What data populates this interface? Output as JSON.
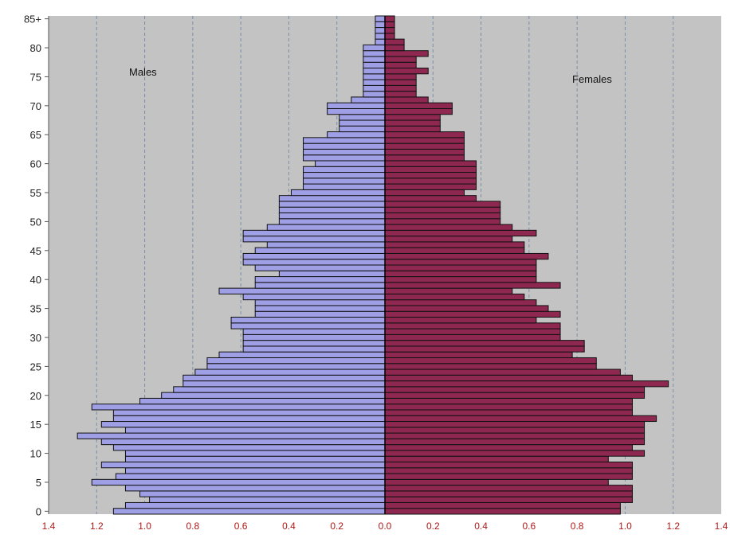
{
  "chart_data": {
    "type": "bar",
    "orientation": "horizontal",
    "subtype": "population-pyramid",
    "title": "",
    "xlabel": "",
    "ylabel": "",
    "annotations": [
      {
        "text": "Males"
      },
      {
        "text": "Females"
      }
    ],
    "y_categories": [
      "0",
      "1",
      "2",
      "3",
      "4",
      "5",
      "6",
      "7",
      "8",
      "9",
      "10",
      "11",
      "12",
      "13",
      "14",
      "15",
      "16",
      "17",
      "18",
      "19",
      "20",
      "21",
      "22",
      "23",
      "24",
      "25",
      "26",
      "27",
      "28",
      "29",
      "30",
      "31",
      "32",
      "33",
      "34",
      "35",
      "36",
      "37",
      "38",
      "39",
      "40",
      "41",
      "42",
      "43",
      "44",
      "45",
      "46",
      "47",
      "48",
      "49",
      "50",
      "51",
      "52",
      "53",
      "54",
      "55",
      "56",
      "57",
      "58",
      "59",
      "60",
      "61",
      "62",
      "63",
      "64",
      "65",
      "66",
      "67",
      "68",
      "69",
      "70",
      "71",
      "72",
      "73",
      "74",
      "75",
      "76",
      "77",
      "78",
      "79",
      "80",
      "81",
      "82",
      "83",
      "84",
      "85+"
    ],
    "y_tick_labels": [
      "0",
      "5",
      "10",
      "15",
      "20",
      "25",
      "30",
      "35",
      "40",
      "45",
      "50",
      "55",
      "60",
      "65",
      "70",
      "75",
      "80",
      "85+"
    ],
    "x_tick_labels": [
      "1.4",
      "1.2",
      "1.0",
      "0.8",
      "0.6",
      "0.4",
      "0.2",
      "0.0",
      "0.2",
      "0.4",
      "0.6",
      "0.8",
      "1.0",
      "1.2",
      "1.4"
    ],
    "xlim": [
      -1.4,
      1.4
    ],
    "grid": "vertical",
    "series": [
      {
        "name": "Males",
        "color": "#9f9fe6",
        "values": [
          1.13,
          1.08,
          0.98,
          1.02,
          1.08,
          1.22,
          1.12,
          1.08,
          1.18,
          1.08,
          1.08,
          1.13,
          1.18,
          1.28,
          1.08,
          1.18,
          1.13,
          1.13,
          1.22,
          1.02,
          0.93,
          0.88,
          0.84,
          0.84,
          0.79,
          0.74,
          0.74,
          0.69,
          0.59,
          0.59,
          0.59,
          0.59,
          0.64,
          0.64,
          0.54,
          0.54,
          0.54,
          0.59,
          0.69,
          0.54,
          0.54,
          0.44,
          0.54,
          0.59,
          0.59,
          0.54,
          0.49,
          0.59,
          0.59,
          0.49,
          0.44,
          0.44,
          0.44,
          0.44,
          0.44,
          0.39,
          0.34,
          0.34,
          0.34,
          0.34,
          0.29,
          0.34,
          0.34,
          0.34,
          0.34,
          0.24,
          0.19,
          0.19,
          0.19,
          0.24,
          0.24,
          0.14,
          0.09,
          0.09,
          0.09,
          0.09,
          0.09,
          0.09,
          0.09,
          0.09,
          0.09,
          0.04,
          0.04,
          0.04,
          0.04,
          0.04
        ]
      },
      {
        "name": "Females",
        "color": "#8e2850",
        "values": [
          0.98,
          0.98,
          1.03,
          1.03,
          1.03,
          0.93,
          1.03,
          1.03,
          1.03,
          0.93,
          1.08,
          1.03,
          1.08,
          1.08,
          1.08,
          1.08,
          1.13,
          1.03,
          1.03,
          1.03,
          1.08,
          1.08,
          1.18,
          1.03,
          0.98,
          0.88,
          0.88,
          0.78,
          0.83,
          0.83,
          0.73,
          0.73,
          0.73,
          0.63,
          0.73,
          0.68,
          0.63,
          0.58,
          0.53,
          0.73,
          0.63,
          0.63,
          0.63,
          0.63,
          0.68,
          0.58,
          0.58,
          0.53,
          0.63,
          0.53,
          0.48,
          0.48,
          0.48,
          0.48,
          0.38,
          0.33,
          0.38,
          0.38,
          0.38,
          0.38,
          0.38,
          0.33,
          0.33,
          0.33,
          0.33,
          0.33,
          0.23,
          0.23,
          0.23,
          0.28,
          0.28,
          0.18,
          0.13,
          0.13,
          0.13,
          0.13,
          0.18,
          0.13,
          0.13,
          0.18,
          0.08,
          0.08,
          0.04,
          0.04,
          0.04,
          0.04
        ]
      }
    ]
  }
}
